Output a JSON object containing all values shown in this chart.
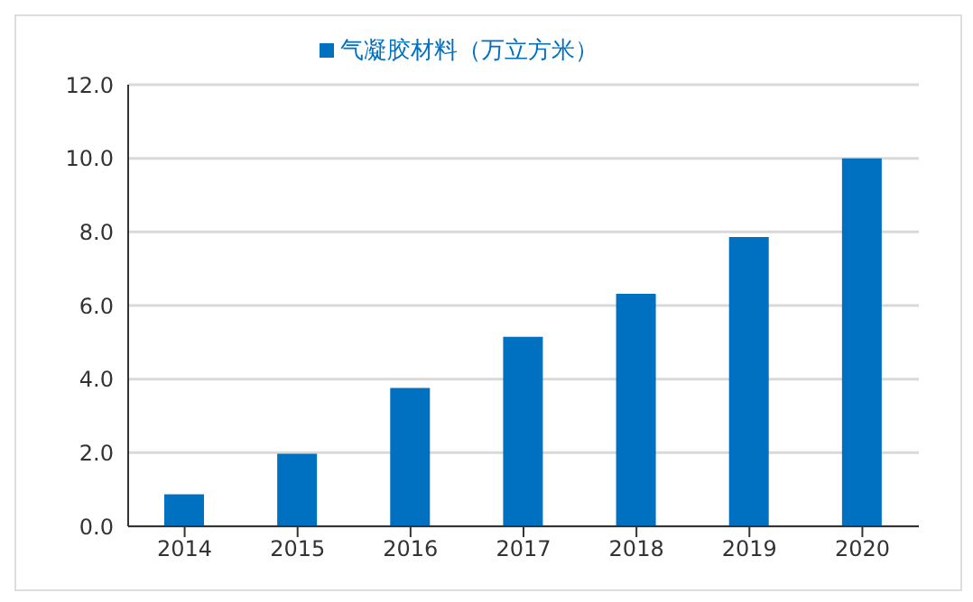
{
  "chart_data": {
    "type": "bar",
    "categories": [
      "2014",
      "2015",
      "2016",
      "2017",
      "2018",
      "2019",
      "2020"
    ],
    "series": [
      {
        "name": "气凝胶材料（万立方米）",
        "color": "#0070c0",
        "values": [
          0.87,
          1.97,
          3.76,
          5.15,
          6.32,
          7.86,
          10.0
        ]
      }
    ],
    "ylim": [
      0,
      12
    ],
    "yticks": [
      {
        "value": 0,
        "label": "0.0"
      },
      {
        "value": 2,
        "label": "2.0"
      },
      {
        "value": 4,
        "label": "4.0"
      },
      {
        "value": 6,
        "label": "6.0"
      },
      {
        "value": 8,
        "label": "8.0"
      },
      {
        "value": 10,
        "label": "10.0"
      },
      {
        "value": 12,
        "label": "12.0"
      }
    ],
    "grid": "y",
    "legend": "top"
  }
}
